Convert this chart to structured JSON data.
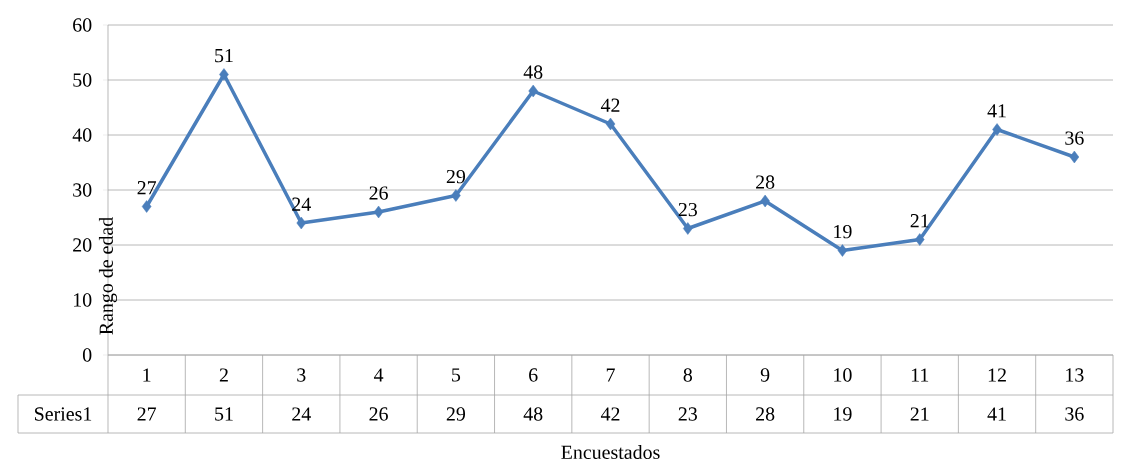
{
  "chart_data": {
    "type": "line",
    "xlabel": "Encuestados",
    "ylabel": "Rango de edad",
    "categories": [
      "1",
      "2",
      "3",
      "4",
      "5",
      "6",
      "7",
      "8",
      "9",
      "10",
      "11",
      "12",
      "13"
    ],
    "series": [
      {
        "name": "Series1",
        "color": "#4a7ebb",
        "values": [
          27,
          51,
          24,
          26,
          29,
          48,
          42,
          23,
          28,
          19,
          21,
          41,
          36
        ],
        "value_labels": [
          "27",
          "51",
          "24",
          "26",
          "29",
          "48",
          "42",
          "23",
          "28",
          "19",
          "21",
          "41",
          "36"
        ]
      }
    ],
    "ylim": [
      0,
      60
    ],
    "yticks": [
      0,
      10,
      20,
      30,
      40,
      50,
      60
    ],
    "grid": "y",
    "marker": "diamond",
    "line_style": "solid",
    "data_labels": true
  }
}
